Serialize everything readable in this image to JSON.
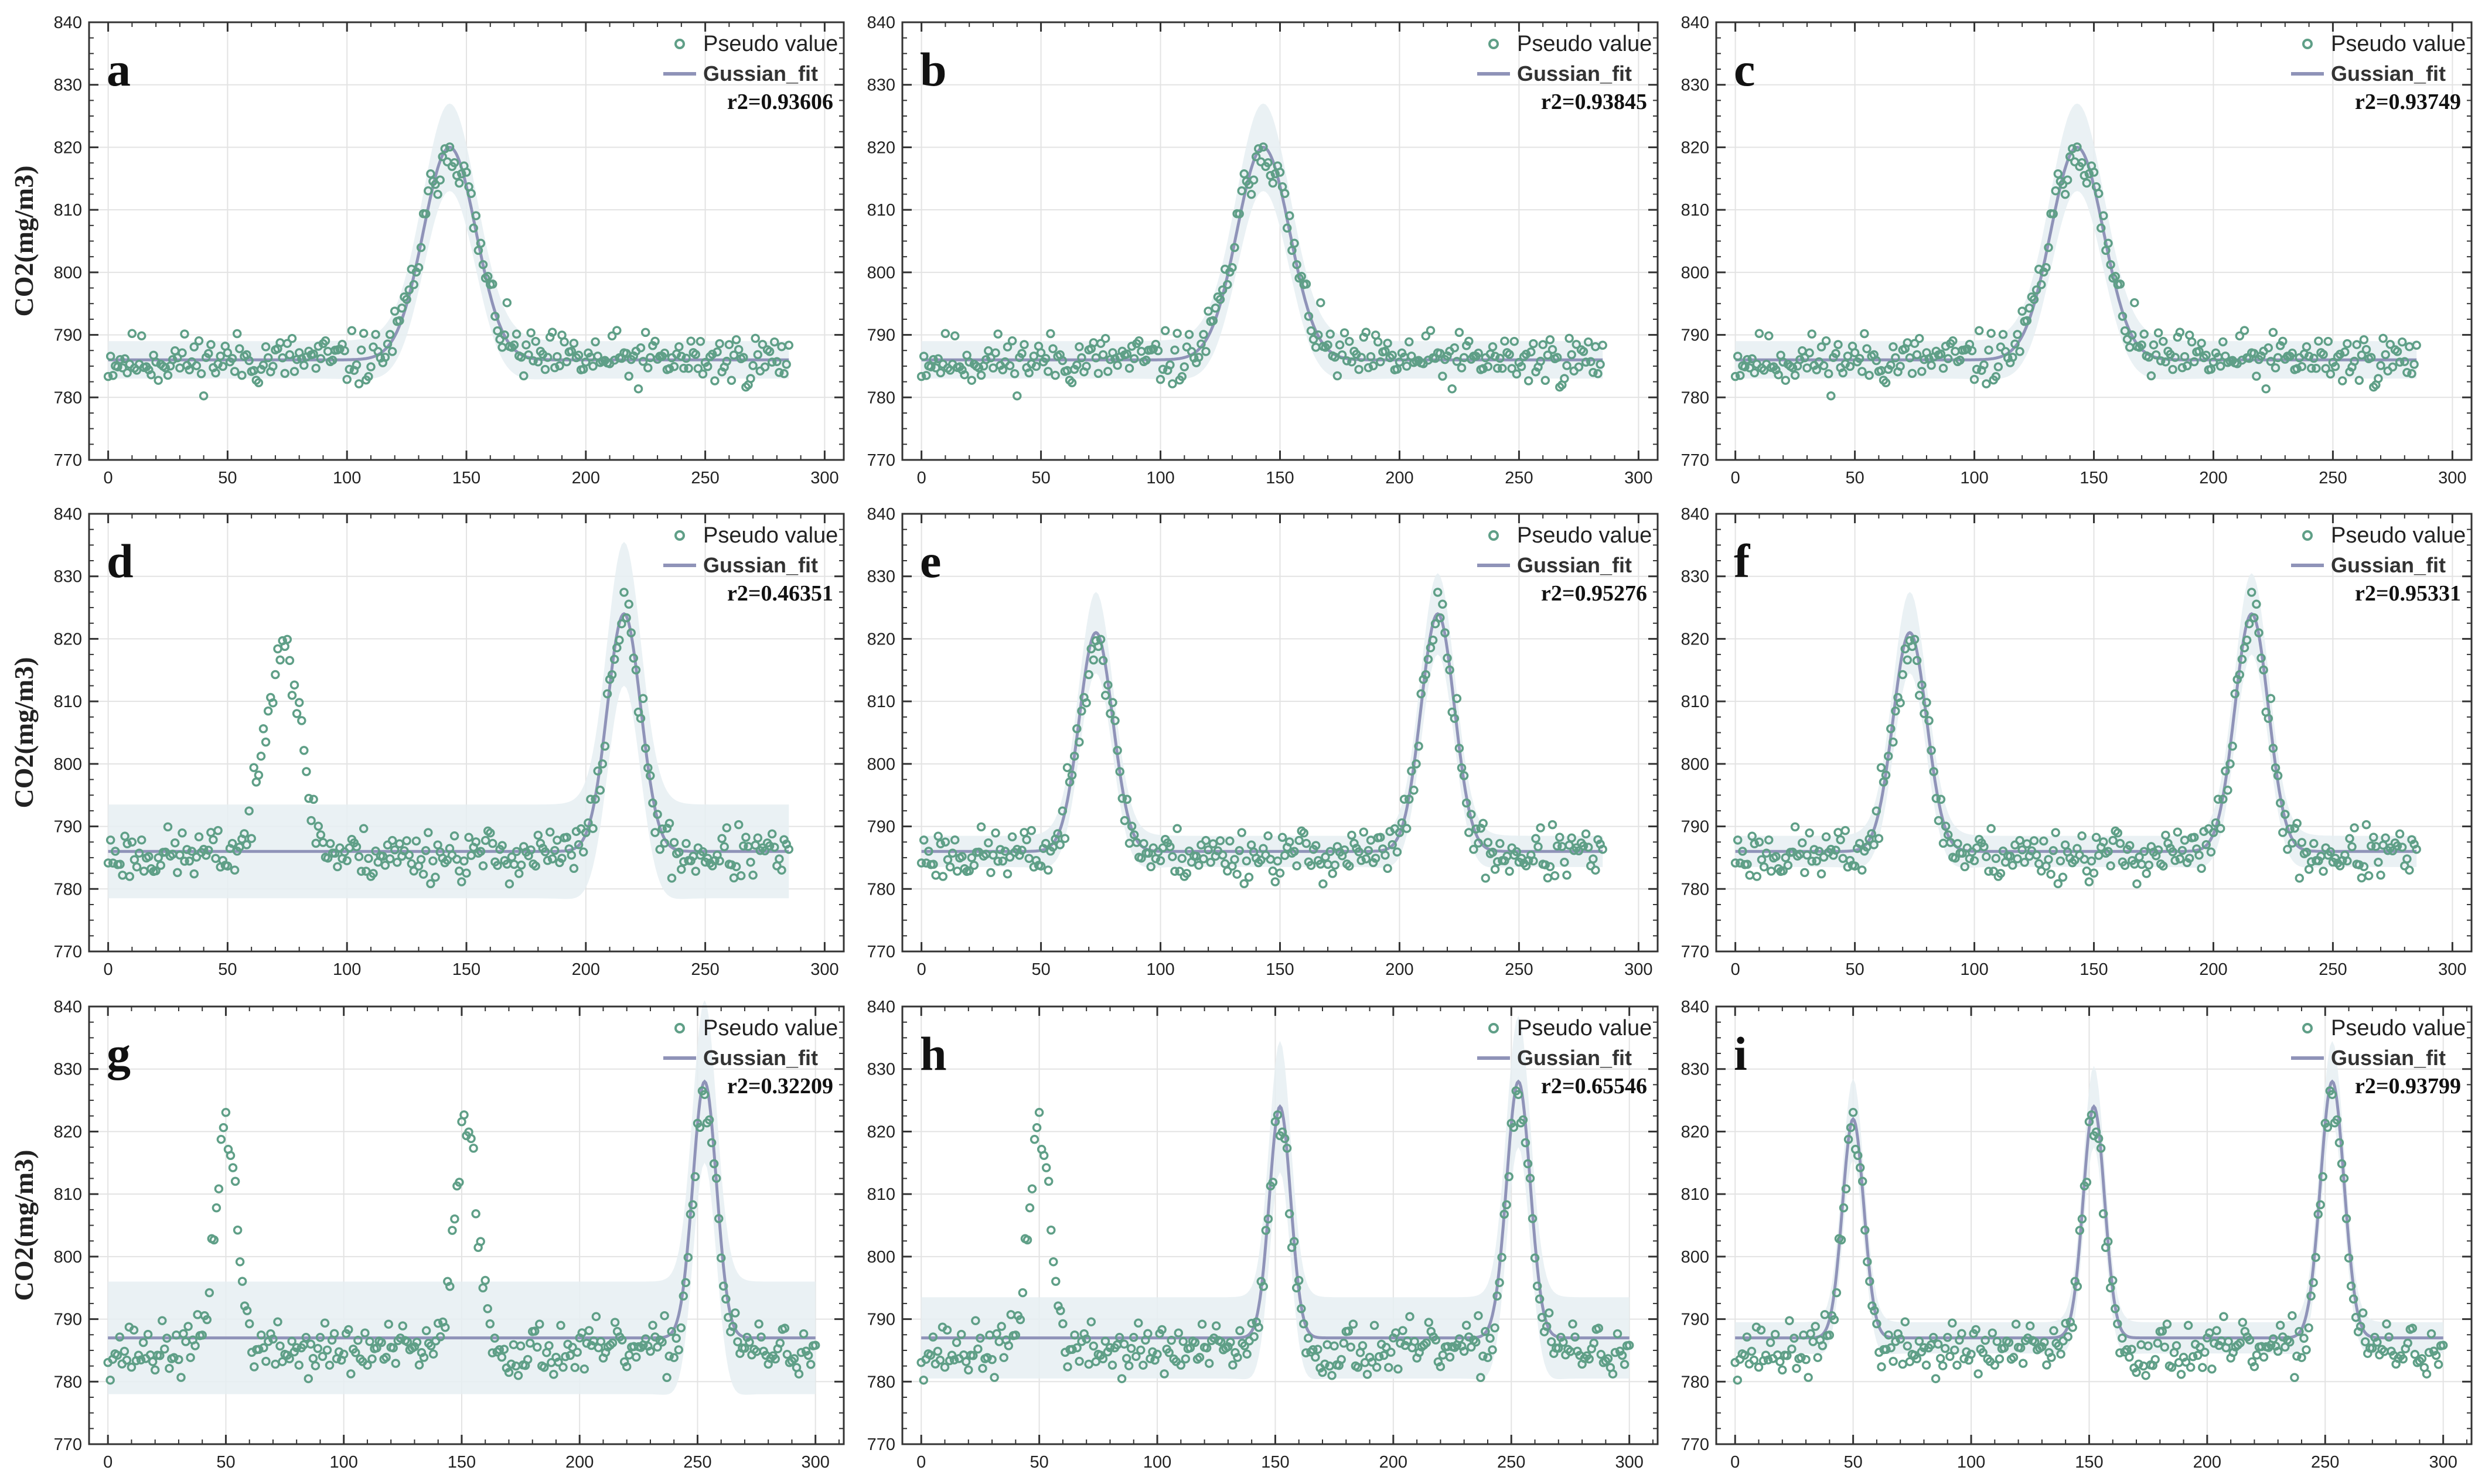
{
  "colors": {
    "points": "#5f9f87",
    "fit": "#8f93b8",
    "band": "#e6eef2",
    "grid": "#e3e3e3",
    "axis": "#333333"
  },
  "ylabel": "CO2(mg/m3)",
  "legend": {
    "points_label": "Pseudo value",
    "fit_label": "Gussian_fit"
  },
  "chart_data": [
    {
      "type": "scatter",
      "panel": "a",
      "r2_label": "r2=0.93606",
      "xlim": [
        -8,
        308
      ],
      "ylim": [
        770,
        840
      ],
      "xticks": [
        0,
        50,
        100,
        150,
        200,
        250,
        300
      ],
      "yticks": [
        770,
        780,
        790,
        800,
        810,
        820,
        830,
        840
      ],
      "npoints": 286,
      "baseline": 786,
      "peaks": [
        {
          "center": 143,
          "height": 34,
          "sigma": 11
        }
      ],
      "fit_peaks": [
        {
          "center": 143,
          "height": 34,
          "sigma": 11
        }
      ],
      "fit_baseline": 786,
      "band_half": 3,
      "seed": 11
    },
    {
      "type": "scatter",
      "panel": "b",
      "r2_label": "r2=0.93845",
      "xlim": [
        -8,
        308
      ],
      "ylim": [
        770,
        840
      ],
      "xticks": [
        0,
        50,
        100,
        150,
        200,
        250,
        300
      ],
      "yticks": [
        770,
        780,
        790,
        800,
        810,
        820,
        830,
        840
      ],
      "npoints": 286,
      "baseline": 786,
      "peaks": [
        {
          "center": 143,
          "height": 34,
          "sigma": 11
        }
      ],
      "fit_peaks": [
        {
          "center": 143,
          "height": 34,
          "sigma": 11
        }
      ],
      "fit_baseline": 786,
      "band_half": 3,
      "seed": 11
    },
    {
      "type": "scatter",
      "panel": "c",
      "r2_label": "r2=0.93749",
      "xlim": [
        -8,
        308
      ],
      "ylim": [
        770,
        840
      ],
      "xticks": [
        0,
        50,
        100,
        150,
        200,
        250,
        300
      ],
      "yticks": [
        770,
        780,
        790,
        800,
        810,
        820,
        830,
        840
      ],
      "npoints": 286,
      "baseline": 786,
      "peaks": [
        {
          "center": 143,
          "height": 34,
          "sigma": 11
        }
      ],
      "fit_peaks": [
        {
          "center": 143,
          "height": 34,
          "sigma": 11
        }
      ],
      "fit_baseline": 786,
      "band_half": 3,
      "seed": 11
    },
    {
      "type": "scatter",
      "panel": "d",
      "r2_label": "r2=0.46351",
      "xlim": [
        -8,
        308
      ],
      "ylim": [
        770,
        840
      ],
      "xticks": [
        0,
        50,
        100,
        150,
        200,
        250,
        300
      ],
      "yticks": [
        770,
        780,
        790,
        800,
        810,
        820,
        830,
        840
      ],
      "npoints": 286,
      "baseline": 785.5,
      "peaks": [
        {
          "center": 73,
          "height": 35,
          "sigma": 7
        },
        {
          "center": 216,
          "height": 38,
          "sigma": 7
        }
      ],
      "fit_peaks": [
        {
          "center": 216,
          "height": 38,
          "sigma": 7
        }
      ],
      "fit_baseline": 786,
      "band_half": 7.5,
      "seed": 23
    },
    {
      "type": "scatter",
      "panel": "e",
      "r2_label": "r2=0.95276",
      "xlim": [
        -8,
        308
      ],
      "ylim": [
        770,
        840
      ],
      "xticks": [
        0,
        50,
        100,
        150,
        200,
        250,
        300
      ],
      "yticks": [
        770,
        780,
        790,
        800,
        810,
        820,
        830,
        840
      ],
      "npoints": 286,
      "baseline": 785.5,
      "peaks": [
        {
          "center": 73,
          "height": 35,
          "sigma": 7
        },
        {
          "center": 216,
          "height": 38,
          "sigma": 7
        }
      ],
      "fit_peaks": [
        {
          "center": 73,
          "height": 35,
          "sigma": 7
        },
        {
          "center": 216,
          "height": 38,
          "sigma": 7
        }
      ],
      "fit_baseline": 786,
      "band_half": 2.5,
      "seed": 23
    },
    {
      "type": "scatter",
      "panel": "f",
      "r2_label": "r2=0.95331",
      "xlim": [
        -8,
        308
      ],
      "ylim": [
        770,
        840
      ],
      "xticks": [
        0,
        50,
        100,
        150,
        200,
        250,
        300
      ],
      "yticks": [
        770,
        780,
        790,
        800,
        810,
        820,
        830,
        840
      ],
      "npoints": 286,
      "baseline": 785.5,
      "peaks": [
        {
          "center": 73,
          "height": 35,
          "sigma": 7
        },
        {
          "center": 216,
          "height": 38,
          "sigma": 7
        }
      ],
      "fit_peaks": [
        {
          "center": 73,
          "height": 35,
          "sigma": 7
        },
        {
          "center": 216,
          "height": 38,
          "sigma": 7
        }
      ],
      "fit_baseline": 786,
      "band_half": 2.5,
      "seed": 23
    },
    {
      "type": "scatter",
      "panel": "g",
      "r2_label": "r2=0.32209",
      "xlim": [
        -8,
        312
      ],
      "ylim": [
        770,
        840
      ],
      "xticks": [
        0,
        50,
        100,
        150,
        200,
        250,
        300
      ],
      "yticks": [
        770,
        780,
        790,
        800,
        810,
        820,
        830,
        840
      ],
      "npoints": 301,
      "baseline": 785,
      "peaks": [
        {
          "center": 50,
          "height": 36,
          "sigma": 4.5
        },
        {
          "center": 152,
          "height": 38,
          "sigma": 4.5
        },
        {
          "center": 253,
          "height": 41,
          "sigma": 5
        }
      ],
      "fit_peaks": [
        {
          "center": 253,
          "height": 41,
          "sigma": 5
        }
      ],
      "fit_baseline": 787,
      "band_half": 9,
      "seed": 37
    },
    {
      "type": "scatter",
      "panel": "h",
      "r2_label": "r2=0.65546",
      "xlim": [
        -8,
        312
      ],
      "ylim": [
        770,
        840
      ],
      "xticks": [
        0,
        50,
        100,
        150,
        200,
        250,
        300
      ],
      "yticks": [
        770,
        780,
        790,
        800,
        810,
        820,
        830,
        840
      ],
      "npoints": 301,
      "baseline": 785,
      "peaks": [
        {
          "center": 50,
          "height": 36,
          "sigma": 4.5
        },
        {
          "center": 152,
          "height": 38,
          "sigma": 4.5
        },
        {
          "center": 253,
          "height": 41,
          "sigma": 5
        }
      ],
      "fit_peaks": [
        {
          "center": 152,
          "height": 37,
          "sigma": 4.5
        },
        {
          "center": 253,
          "height": 41,
          "sigma": 5
        }
      ],
      "fit_baseline": 787,
      "band_half": 6.5,
      "seed": 37
    },
    {
      "type": "scatter",
      "panel": "i",
      "r2_label": "r2=0.93799",
      "xlim": [
        -8,
        312
      ],
      "ylim": [
        770,
        840
      ],
      "xticks": [
        0,
        50,
        100,
        150,
        200,
        250,
        300
      ],
      "yticks": [
        770,
        780,
        790,
        800,
        810,
        820,
        830,
        840
      ],
      "npoints": 301,
      "baseline": 785,
      "peaks": [
        {
          "center": 50,
          "height": 36,
          "sigma": 4.5
        },
        {
          "center": 152,
          "height": 38,
          "sigma": 4.5
        },
        {
          "center": 253,
          "height": 41,
          "sigma": 5
        }
      ],
      "fit_peaks": [
        {
          "center": 50,
          "height": 35,
          "sigma": 4.5
        },
        {
          "center": 152,
          "height": 37,
          "sigma": 4.5
        },
        {
          "center": 253,
          "height": 41,
          "sigma": 5
        }
      ],
      "fit_baseline": 787,
      "band_half": 2.5,
      "seed": 37
    }
  ]
}
